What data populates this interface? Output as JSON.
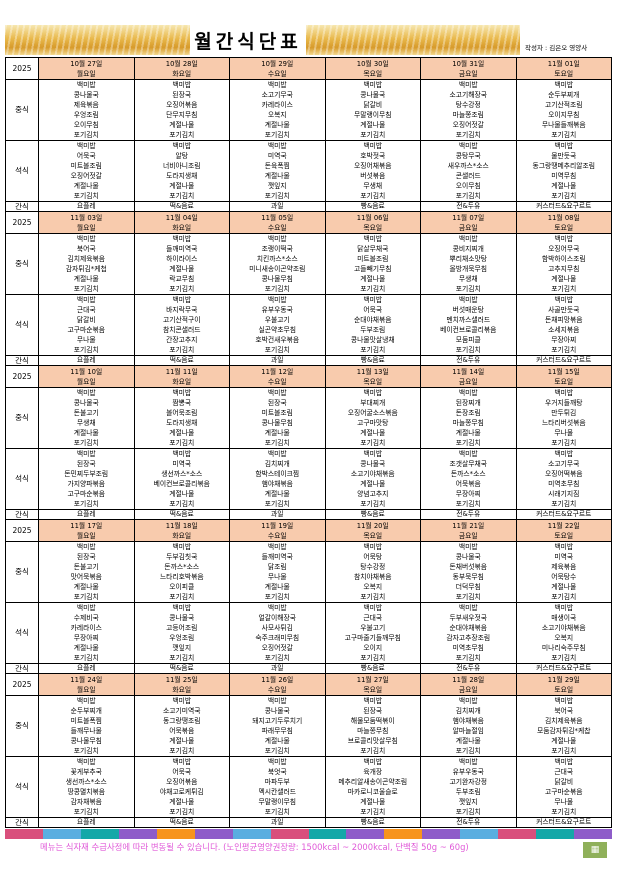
{
  "title": "월간식단표",
  "author": "작성자 : 김은오 영양사",
  "year": "2025",
  "labels": {
    "lunch": "중식",
    "dinner": "석식",
    "snack": "간식"
  },
  "footer": "메뉴는 식자재 수급사정에 따라 변동될 수 있습니다. (노인평균영양권장량: 1500kcal ~ 2000kcal, 단백질 50g ~ 60g)",
  "logo": "해피",
  "colors": {
    "header": "#f8cbad",
    "footer_text": "#e05ad8",
    "bar": [
      "#d94f7c",
      "#5aaee0",
      "#14a8a8",
      "#8e5cc9",
      "#f7941d",
      "#8e5cc9",
      "#5aaee0",
      "#d94f7c",
      "#14a8a8",
      "#8e5cc9",
      "#f7941d",
      "#8e5cc9",
      "#5aaee0",
      "#d94f7c",
      "#14a8a8",
      "#8e5cc9"
    ]
  },
  "weeks": [
    {
      "days": [
        {
          "date": "10월 27일",
          "weekday": "월요일",
          "lunch": [
            "백미밥",
            "콩나물국",
            "제육볶음",
            "우엉조림",
            "오이무침",
            "포기김치"
          ],
          "dinner": [
            "백미밥",
            "어묵국",
            "미트볼조림",
            "오징어젓갈",
            "계절나물",
            "포기김치"
          ],
          "snack": "요플레"
        },
        {
          "date": "10월 28일",
          "weekday": "화요일",
          "lunch": [
            "백미밥",
            "된장국",
            "오징어볶음",
            "단무지무침",
            "계절나물",
            "포기김치"
          ],
          "dinner": [
            "백미밥",
            "알탕",
            "너비아니조림",
            "도라지생채",
            "계절나물",
            "포기김치"
          ],
          "snack": "떡&음료"
        },
        {
          "date": "10월 29일",
          "weekday": "수요일",
          "lunch": [
            "백미밥",
            "소고기무국",
            "카레라이스",
            "오복지",
            "계절나물",
            "포기김치"
          ],
          "dinner": [
            "백미밥",
            "미역국",
            "돈육폭찜",
            "계절나물",
            "깻잎지",
            "포기김치"
          ],
          "snack": "과일"
        },
        {
          "date": "10월 30일",
          "weekday": "목요일",
          "lunch": [
            "백미밥",
            "콩나물국",
            "닭갈비",
            "무말랭이무침",
            "계절나물",
            "포기김치"
          ],
          "dinner": [
            "백미밥",
            "호박젓국",
            "오징어채볶음",
            "버섯볶음",
            "무생채",
            "포기김치"
          ],
          "snack": "빵&음료"
        },
        {
          "date": "10월 31일",
          "weekday": "금요일",
          "lunch": [
            "백미밥",
            "소고기해장국",
            "탕수강정",
            "마늘쫑조림",
            "오징어젓갈",
            "포기김치"
          ],
          "dinner": [
            "백미밥",
            "콩탕무국",
            "새우까스*소스",
            "콘샐러드",
            "오이무침",
            "포기김치"
          ],
          "snack": "전&두유"
        },
        {
          "date": "11월 01일",
          "weekday": "토요일",
          "lunch": [
            "백미밥",
            "순두부찌개",
            "고기산적조림",
            "오이지무침",
            "무나물들깨볶음",
            "포기김치"
          ],
          "dinner": [
            "백미밥",
            "물만둣국",
            "동그랑땡메추리알조림",
            "미역무침",
            "계절나물",
            "포기김치"
          ],
          "snack": "커스터드&요구르트"
        }
      ]
    },
    {
      "days": [
        {
          "date": "11월 03일",
          "weekday": "월요일",
          "lunch": [
            "백미밥",
            "북어국",
            "김치제육볶음",
            "감자튀김*케첩",
            "계절나물",
            "포기김치"
          ],
          "dinner": [
            "백미밥",
            "근대국",
            "닭갈비",
            "고구마순볶음",
            "무나물",
            "포기김치"
          ],
          "snack": "요플레"
        },
        {
          "date": "11월 04일",
          "weekday": "화요일",
          "lunch": [
            "백미밥",
            "들깨미역국",
            "하이라이스",
            "계절나물",
            "락교무침",
            "포기김치"
          ],
          "dinner": [
            "백미밥",
            "바지락무국",
            "고기산적구이",
            "참치콘샐러드",
            "간장고추지",
            "포기김치"
          ],
          "snack": "떡&음료"
        },
        {
          "date": "11월 05일",
          "weekday": "수요일",
          "lunch": [
            "백미밥",
            "조랭이떡국",
            "치킨까스*소스",
            "미니새송이곤약조림",
            "콩나물무침",
            "포기김치"
          ],
          "dinner": [
            "백미밥",
            "유부우동국",
            "우불고기",
            "실곤약초무침",
            "호박건새우볶음",
            "포기김치"
          ],
          "snack": "과일"
        },
        {
          "date": "11월 06일",
          "weekday": "목요일",
          "lunch": [
            "백미밥",
            "닭살무채국",
            "미트볼조림",
            "고들빼기무침",
            "계절나물",
            "포기김치"
          ],
          "dinner": [
            "백미밥",
            "어묵국",
            "순대야채볶음",
            "두부조림",
            "콩나물맛살냉채",
            "포기김치"
          ],
          "snack": "빵&음료"
        },
        {
          "date": "11월 07일",
          "weekday": "금요일",
          "lunch": [
            "백미밥",
            "콩비지찌개",
            "뿌리채소맛탕",
            "올방개묵무침",
            "무생채",
            "포기김치"
          ],
          "dinner": [
            "백미밥",
            "버섯매운탕",
            "멘치까스샐러드",
            "베이컨브로콜리볶음",
            "모둠피클",
            "포기김치"
          ],
          "snack": "전&두유"
        },
        {
          "date": "11월 08일",
          "weekday": "토요일",
          "lunch": [
            "백미밥",
            "오징어무국",
            "함박하이스조림",
            "고추지무침",
            "계절나물",
            "포기김치"
          ],
          "dinner": [
            "백미밥",
            "사골만둣국",
            "돈채피망볶음",
            "소세지볶음",
            "무장아찌",
            "포기김치"
          ],
          "snack": "커스터드&요구르트"
        }
      ]
    },
    {
      "days": [
        {
          "date": "11월 10일",
          "weekday": "월요일",
          "lunch": [
            "백미밥",
            "콩나물국",
            "돈불고기",
            "무생채",
            "계절나물",
            "포기김치"
          ],
          "dinner": [
            "백미밥",
            "된장국",
            "돈민찌두부조림",
            "가지양파볶음",
            "고구마순볶음",
            "포기김치"
          ],
          "snack": "요플레"
        },
        {
          "date": "11월 11일",
          "weekday": "화요일",
          "lunch": [
            "백미밥",
            "짬뽕국",
            "볼어묵조림",
            "도라지생채",
            "계절나물",
            "포기김치"
          ],
          "dinner": [
            "백미밥",
            "미역국",
            "생선까스*소스",
            "베이컨브로콜리볶음",
            "계절나물",
            "포기김치"
          ],
          "snack": "떡&음료"
        },
        {
          "date": "11월 12일",
          "weekday": "수요일",
          "lunch": [
            "백미밥",
            "된장국",
            "미트볼조림",
            "콩나물무침",
            "계절나물",
            "포기김치"
          ],
          "dinner": [
            "백미밥",
            "김치찌개",
            "함박스테이크찜",
            "햄야채볶음",
            "계절나물",
            "포기김치"
          ],
          "snack": "과일"
        },
        {
          "date": "11월 13일",
          "weekday": "목요일",
          "lunch": [
            "백미밥",
            "부대찌개",
            "오징어굴소스볶음",
            "고구마맛탕",
            "계절나물",
            "포기김치"
          ],
          "dinner": [
            "백미밥",
            "콩나물국",
            "소고기야채볶음",
            "계절나물",
            "양념고추지",
            "포기김치"
          ],
          "snack": "빵&음료"
        },
        {
          "date": "11월 14일",
          "weekday": "금요일",
          "lunch": [
            "백미밥",
            "된장찌개",
            "돈장조림",
            "마늘쫑무침",
            "계절나물",
            "포기김치"
          ],
          "dinner": [
            "백미밥",
            "조갯살무채국",
            "돈까스*소스",
            "어묵볶음",
            "무장아찌",
            "포기김치"
          ],
          "snack": "전&두유"
        },
        {
          "date": "11월 15일",
          "weekday": "토요일",
          "lunch": [
            "백미밥",
            "우거지들깨탕",
            "만두튀김",
            "느타리버섯볶음",
            "무나물",
            "포기김치"
          ],
          "dinner": [
            "백미밥",
            "소고기무국",
            "오징어떡볶음",
            "미역초무침",
            "시래기지짐",
            "포기김치"
          ],
          "snack": "커스터드&요구르트"
        }
      ]
    },
    {
      "days": [
        {
          "date": "11월 17일",
          "weekday": "월요일",
          "lunch": [
            "백미밥",
            "된장국",
            "돈불고기",
            "맛어묵볶음",
            "계절나물",
            "포기김치"
          ],
          "dinner": [
            "백미밥",
            "수제비국",
            "카레라이스",
            "무장아찌",
            "계절나물",
            "포기김치"
          ],
          "snack": "요플레"
        },
        {
          "date": "11월 18일",
          "weekday": "화요일",
          "lunch": [
            "백미밥",
            "두부김칫국",
            "돈까스*소스",
            "느타리호박볶음",
            "오이피클",
            "포기김치"
          ],
          "dinner": [
            "백미밥",
            "콩나물국",
            "고등어조림",
            "우엉조림",
            "깻잎지",
            "포기김치"
          ],
          "snack": "떡&음료"
        },
        {
          "date": "11월 19일",
          "weekday": "수요일",
          "lunch": [
            "백미밥",
            "들깨미역국",
            "닭조림",
            "무나물",
            "계절나물",
            "포기김치"
          ],
          "dinner": [
            "백미밥",
            "얼갈이해장국",
            "사모사튀김",
            "숙주크래미무침",
            "오징어젓갈",
            "포기김치"
          ],
          "snack": "과일"
        },
        {
          "date": "11월 20일",
          "weekday": "목요일",
          "lunch": [
            "백미밥",
            "어묵탕",
            "탕수강정",
            "참치야채볶음",
            "오복지",
            "포기김치"
          ],
          "dinner": [
            "백미밥",
            "근대국",
            "우불고기",
            "고구마줄기들깨무침",
            "오이지",
            "포기김치"
          ],
          "snack": "빵&음료"
        },
        {
          "date": "11월 21일",
          "weekday": "금요일",
          "lunch": [
            "백미밥",
            "콩나물국",
            "돈채버섯볶음",
            "동부묵무침",
            "더덕무침",
            "포기김치"
          ],
          "dinner": [
            "백미밥",
            "두부새우젓국",
            "순대야채볶음",
            "감자고추장조림",
            "미역초무침",
            "포기김치"
          ],
          "snack": "전&두유"
        },
        {
          "date": "11월 22일",
          "weekday": "토요일",
          "lunch": [
            "백미밥",
            "미역국",
            "제육볶음",
            "어묵탕수",
            "계절나물",
            "포기김치"
          ],
          "dinner": [
            "백미밥",
            "매생이국",
            "소고기야채볶음",
            "오복지",
            "미나리숙주무침",
            "포기김치"
          ],
          "snack": "커스터드&요구르트"
        }
      ]
    },
    {
      "days": [
        {
          "date": "11월 24일",
          "weekday": "월요일",
          "lunch": [
            "백미밥",
            "순두부찌개",
            "미트볼폭찜",
            "들깨무나물",
            "콩나물무침",
            "포기김치"
          ],
          "dinner": [
            "백미밥",
            "꽃게부추국",
            "생선까스*소스",
            "땅콩멸치볶음",
            "감자채볶음",
            "포기김치"
          ],
          "snack": "요플레"
        },
        {
          "date": "11월 25일",
          "weekday": "화요일",
          "lunch": [
            "백미밥",
            "소고기미역국",
            "동그랑땡조림",
            "어묵볶음",
            "계절나물",
            "포기김치"
          ],
          "dinner": [
            "백미밥",
            "어묵국",
            "오징어볶음",
            "야채고로케튀김",
            "계절나물",
            "포기김치"
          ],
          "snack": "떡&음료"
        },
        {
          "date": "11월 26일",
          "weekday": "수요일",
          "lunch": [
            "백미밥",
            "콩나물국",
            "돼지고기두루치기",
            "파래무무침",
            "계절나물",
            "포기김치"
          ],
          "dinner": [
            "백미밥",
            "북엇국",
            "마파두부",
            "멕시칸샐러드",
            "무말랭이무침",
            "포기김치"
          ],
          "snack": "과일"
        },
        {
          "date": "11월 27일",
          "weekday": "목요일",
          "lunch": [
            "백미밥",
            "된장국",
            "해물모둠떡볶이",
            "마늘쫑무침",
            "브로콜리맛살무침",
            "포기김치"
          ],
          "dinner": [
            "백미밥",
            "육개장",
            "메추리알새송이곤약조림",
            "마카로니코울슬로",
            "계절나물",
            "포기김치"
          ],
          "snack": "빵&음료"
        },
        {
          "date": "11월 28일",
          "weekday": "금요일",
          "lunch": [
            "백미밥",
            "김치찌개",
            "햄야채볶음",
            "알마늘절임",
            "계절나물",
            "포기김치"
          ],
          "dinner": [
            "백미밥",
            "유부우동국",
            "고기완자강정",
            "두부조림",
            "깻잎지",
            "포기김치"
          ],
          "snack": "전&두유"
        },
        {
          "date": "11월 29일",
          "weekday": "토요일",
          "lunch": [
            "백미밥",
            "북어국",
            "김치제육볶음",
            "모둠감자튀김*케찹",
            "계절나물",
            "포기김치"
          ],
          "dinner": [
            "백미밥",
            "근대국",
            "닭갈비",
            "고구마순볶음",
            "무나물",
            "포기김치"
          ],
          "snack": "커스터드&요구르트"
        }
      ]
    }
  ]
}
